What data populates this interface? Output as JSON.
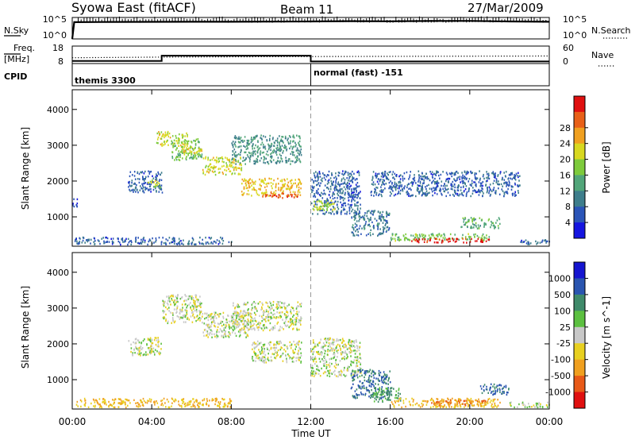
{
  "header": {
    "station": "Syowa East (fitACF)",
    "beam": "Beam 11",
    "date": "27/Mar/2009"
  },
  "noise_panel": {
    "left_label": "N.Sky",
    "right_label": "N.Search",
    "y_top": "10^5",
    "y_bottom": "10^0",
    "right_top": "10^5",
    "right_bottom": "10^0",
    "legend_style": "dotted"
  },
  "freq_panel": {
    "left_label_1": "Freq.",
    "left_label_2": "[MHz]",
    "y_top": "18",
    "y_bottom": "8",
    "right_label": "Nave",
    "right_top": "60",
    "right_bottom": "0",
    "legend_style": "dotted"
  },
  "cpid": {
    "label": "CPID",
    "left_text": "themis 3300",
    "right_text": "normal (fast) -151"
  },
  "time_axis": {
    "ticks": [
      "00:00",
      "04:00",
      "08:00",
      "12:00",
      "16:00",
      "20:00",
      "00:00"
    ],
    "title": "Time UT"
  },
  "power_panel": {
    "ylabel": "Slant Range [km]",
    "yticks": [
      "1000",
      "2000",
      "3000",
      "4000"
    ],
    "colorbar_label": "Power [dB]",
    "colorbar_ticks": [
      "4",
      "8",
      "12",
      "16",
      "20",
      "24",
      "28"
    ],
    "colors": [
      "#1515e0",
      "#2b55b8",
      "#3e7e8c",
      "#52a67a",
      "#7ecb3c",
      "#d8d820",
      "#f0a020",
      "#e86018",
      "#e01010"
    ]
  },
  "velocity_panel": {
    "ylabel": "Slant Range [km]",
    "yticks": [
      "1000",
      "2000",
      "3000",
      "4000"
    ],
    "colorbar_label": "Velocity [m s^-1]",
    "colorbar_ticks": [
      "1000",
      "500",
      "100",
      "25",
      "-25",
      "-100",
      "-500",
      "-1000"
    ],
    "colors": [
      "#1515d0",
      "#2a55b0",
      "#3f8a6a",
      "#5cc040",
      "#c8c8c8",
      "#e8d020",
      "#f0a020",
      "#e85a18",
      "#e01010"
    ]
  },
  "chart_data": [
    {
      "type": "line",
      "title": "N.Sky / N.Search",
      "x_unit": "hours UT",
      "xlim": [
        0,
        24
      ],
      "y_scale": "log",
      "ylim": [
        1,
        100000
      ],
      "series": [
        {
          "name": "N.Sky",
          "x": [
            0,
            0.1,
            2,
            4,
            6,
            8,
            10,
            12,
            14,
            16,
            18,
            20,
            22,
            24
          ],
          "y": [
            1,
            8000,
            9000,
            9500,
            10000,
            10000,
            11000,
            12000,
            14000,
            13000,
            15000,
            16000,
            12000,
            10000
          ]
        }
      ]
    },
    {
      "type": "line",
      "title": "Freq. / Nave",
      "x_unit": "hours UT",
      "xlim": [
        0,
        24
      ],
      "ylim": [
        8,
        18
      ],
      "series": [
        {
          "name": "Freq.",
          "x": [
            0,
            4.5,
            4.5,
            12,
            12,
            24
          ],
          "y": [
            9.5,
            9.5,
            12.5,
            12.5,
            9.2,
            9.2
          ]
        },
        {
          "name": "Nave",
          "x": [
            0,
            4.5,
            12,
            24
          ],
          "y": [
            20,
            22,
            24,
            26
          ]
        }
      ]
    },
    {
      "type": "heatmap",
      "title": "Power [dB]",
      "x_unit": "hours UT",
      "xlim": [
        0,
        24
      ],
      "ylim": [
        180,
        4550
      ],
      "value_range": [
        0,
        30
      ],
      "regions": [
        {
          "t": [
            0.0,
            0.3
          ],
          "r": [
            1300,
            1550
          ],
          "v": 4
        },
        {
          "t": [
            0.1,
            8.0
          ],
          "r": [
            250,
            450
          ],
          "v": 6
        },
        {
          "t": [
            2.8,
            4.5
          ],
          "r": [
            1700,
            2300
          ],
          "v": 6
        },
        {
          "t": [
            3.8,
            4.4
          ],
          "r": [
            1850,
            2050
          ],
          "v": 18
        },
        {
          "t": [
            4.2,
            5.8
          ],
          "r": [
            3000,
            3400
          ],
          "v": 18
        },
        {
          "t": [
            5.0,
            6.5
          ],
          "r": [
            2600,
            3200
          ],
          "v": 14
        },
        {
          "t": [
            5.5,
            6.5
          ],
          "r": [
            2800,
            3000
          ],
          "v": 20
        },
        {
          "t": [
            6.5,
            8.5
          ],
          "r": [
            2200,
            2700
          ],
          "v": 18
        },
        {
          "t": [
            8.5,
            11.5
          ],
          "r": [
            1600,
            2100
          ],
          "v": 20
        },
        {
          "t": [
            9.5,
            11.3
          ],
          "r": [
            1550,
            1700
          ],
          "v": 26
        },
        {
          "t": [
            8.0,
            11.5
          ],
          "r": [
            2500,
            3300
          ],
          "v": 10
        },
        {
          "t": [
            12.0,
            14.5
          ],
          "r": [
            1100,
            2300
          ],
          "v": 6
        },
        {
          "t": [
            12.0,
            13.2
          ],
          "r": [
            1200,
            1500
          ],
          "v": 16
        },
        {
          "t": [
            14.0,
            16.0
          ],
          "r": [
            500,
            1200
          ],
          "v": 8
        },
        {
          "t": [
            15.0,
            22.5
          ],
          "r": [
            1600,
            2300
          ],
          "v": 6
        },
        {
          "t": [
            16.0,
            21.0
          ],
          "r": [
            350,
            550
          ],
          "v": 14
        },
        {
          "t": [
            17.0,
            21.0
          ],
          "r": [
            300,
            420
          ],
          "v": 28
        },
        {
          "t": [
            19.5,
            21.5
          ],
          "r": [
            700,
            1000
          ],
          "v": 12
        },
        {
          "t": [
            22.5,
            24.0
          ],
          "r": [
            250,
            400
          ],
          "v": 6
        }
      ]
    },
    {
      "type": "heatmap",
      "title": "Velocity [m s^-1]",
      "x_unit": "hours UT",
      "xlim": [
        0,
        24
      ],
      "ylim": [
        180,
        4550
      ],
      "value_range": [
        -1000,
        1000
      ],
      "regions": [
        {
          "t": [
            0.1,
            8.0
          ],
          "r": [
            250,
            500
          ],
          "v": -100
        },
        {
          "t": [
            2.8,
            4.5
          ],
          "r": [
            1700,
            2200
          ],
          "v": 0
        },
        {
          "t": [
            4.5,
            6.5
          ],
          "r": [
            2600,
            3400
          ],
          "v": 0
        },
        {
          "t": [
            6.5,
            9.0
          ],
          "r": [
            2200,
            2900
          ],
          "v": 0
        },
        {
          "t": [
            9.0,
            11.5
          ],
          "r": [
            1500,
            2100
          ],
          "v": 0
        },
        {
          "t": [
            8.0,
            11.5
          ],
          "r": [
            2400,
            3200
          ],
          "v": 0
        },
        {
          "t": [
            12.0,
            14.5
          ],
          "r": [
            1100,
            2200
          ],
          "v": 0
        },
        {
          "t": [
            14.0,
            16.0
          ],
          "r": [
            500,
            1300
          ],
          "v": 500
        },
        {
          "t": [
            15.0,
            16.5
          ],
          "r": [
            400,
            800
          ],
          "v": 100
        },
        {
          "t": [
            16.0,
            21.5
          ],
          "r": [
            250,
            500
          ],
          "v": -100
        },
        {
          "t": [
            18.0,
            21.0
          ],
          "r": [
            300,
            450
          ],
          "v": -500
        },
        {
          "t": [
            20.5,
            22.0
          ],
          "r": [
            600,
            900
          ],
          "v": 500
        },
        {
          "t": [
            22.0,
            24.0
          ],
          "r": [
            250,
            400
          ],
          "v": 25
        }
      ]
    }
  ]
}
